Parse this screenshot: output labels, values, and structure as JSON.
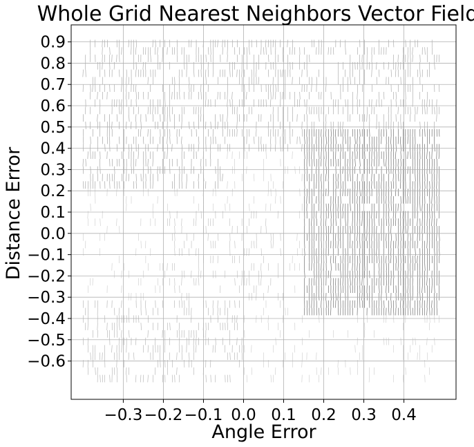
{
  "chart_data": {
    "type": "quiver",
    "title": "Whole Grid Nearest Neighbors Vector Field",
    "xlabel": "Angle Error",
    "ylabel": "Distance Error",
    "xlim": [
      -0.43,
      0.53
    ],
    "ylim": [
      -0.78,
      0.98
    ],
    "x_ticks": [
      -0.3,
      -0.2,
      -0.1,
      0.0,
      0.1,
      0.2,
      0.3,
      0.4
    ],
    "x_tick_labels": [
      "−0.3",
      "−0.2",
      "−0.1",
      "0.0",
      "0.1",
      "0.2",
      "0.3",
      "0.4"
    ],
    "y_ticks": [
      0.9,
      0.8,
      0.7,
      0.6,
      0.5,
      0.4,
      0.3,
      0.2,
      0.1,
      0.0,
      -0.1,
      -0.2,
      -0.3,
      -0.4,
      -0.5,
      -0.6
    ],
    "y_tick_labels": [
      "0.9",
      "0.8",
      "0.7",
      "0.6",
      "0.5",
      "0.4",
      "0.3",
      "0.2",
      "0.1",
      "0.0",
      "−0.1",
      "−0.2",
      "−0.3",
      "−0.4",
      "−0.5",
      "−0.6"
    ],
    "grid": true,
    "field_extent": {
      "x": [
        -0.4,
        0.49
      ],
      "y": [
        -0.7,
        0.9
      ]
    },
    "dominant_direction": "vertical",
    "regions": [
      {
        "x": [
          -0.4,
          0.49
        ],
        "y": [
          0.4,
          0.9
        ],
        "shade": 0.35,
        "note": "upper band"
      },
      {
        "x": [
          0.15,
          0.49
        ],
        "y": [
          -0.4,
          0.5
        ],
        "shade": 0.85,
        "note": "dense right block"
      },
      {
        "x": [
          -0.4,
          0.0
        ],
        "y": [
          -0.7,
          -0.3
        ],
        "shade": 0.25,
        "note": "lower left"
      },
      {
        "x": [
          -0.4,
          -0.05
        ],
        "y": [
          0.2,
          0.55
        ],
        "shade": 0.4,
        "note": "upper left"
      },
      {
        "x": [
          -0.2,
          0.1
        ],
        "y": [
          -0.3,
          0.1
        ],
        "shade": 0.15,
        "note": "center sparse"
      }
    ]
  }
}
